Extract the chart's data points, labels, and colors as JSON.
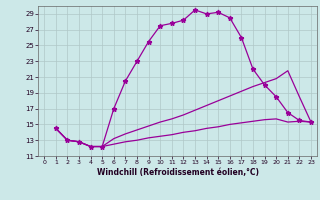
{
  "xlabel": "Windchill (Refroidissement éolien,°C)",
  "background_color": "#cce8e8",
  "grid_color": "#b0c8c8",
  "line_color": "#990099",
  "xlim": [
    -0.5,
    23.5
  ],
  "ylim": [
    11,
    30
  ],
  "yticks": [
    11,
    13,
    15,
    17,
    19,
    21,
    23,
    25,
    27,
    29
  ],
  "xticks": [
    0,
    1,
    2,
    3,
    4,
    5,
    6,
    7,
    8,
    9,
    10,
    11,
    12,
    13,
    14,
    15,
    16,
    17,
    18,
    19,
    20,
    21,
    22,
    23
  ],
  "series": [
    {
      "x": [
        1,
        2,
        3,
        4,
        5,
        6,
        7,
        8,
        9,
        10,
        11,
        12,
        13,
        14,
        15,
        16,
        17,
        18,
        19,
        20,
        21,
        22,
        23
      ],
      "y": [
        14.5,
        13.0,
        12.8,
        12.2,
        12.2,
        17.0,
        20.5,
        23.0,
        25.5,
        27.5,
        27.8,
        28.2,
        29.5,
        29.0,
        29.2,
        28.5,
        26.0,
        22.0,
        20.0,
        18.5,
        16.5,
        15.5,
        15.3
      ],
      "marker": "*",
      "lw": 0.9
    },
    {
      "x": [
        1,
        2,
        3,
        4,
        5,
        6,
        7,
        8,
        9,
        10,
        11,
        12,
        13,
        14,
        15,
        16,
        17,
        18,
        19,
        20,
        21,
        22,
        23
      ],
      "y": [
        14.5,
        13.0,
        12.8,
        12.2,
        12.2,
        13.2,
        13.8,
        14.3,
        14.8,
        15.3,
        15.7,
        16.2,
        16.8,
        17.4,
        18.0,
        18.6,
        19.2,
        19.8,
        20.3,
        20.8,
        21.8,
        18.5,
        15.3
      ],
      "marker": null,
      "lw": 0.9
    },
    {
      "x": [
        1,
        2,
        3,
        4,
        5,
        6,
        7,
        8,
        9,
        10,
        11,
        12,
        13,
        14,
        15,
        16,
        17,
        18,
        19,
        20,
        21,
        22,
        23
      ],
      "y": [
        14.5,
        13.0,
        12.8,
        12.2,
        12.2,
        12.5,
        12.8,
        13.0,
        13.3,
        13.5,
        13.7,
        14.0,
        14.2,
        14.5,
        14.7,
        15.0,
        15.2,
        15.4,
        15.6,
        15.7,
        15.3,
        15.4,
        15.3
      ],
      "marker": null,
      "lw": 0.9
    }
  ]
}
